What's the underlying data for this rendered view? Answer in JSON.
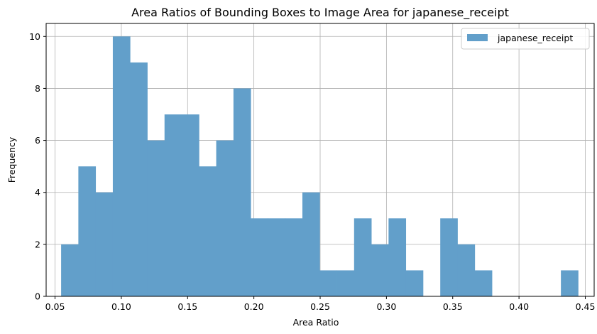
{
  "chart_data": {
    "type": "bar",
    "subtype": "histogram",
    "title": "Area Ratios of Bounding Boxes to Image Area for japanese_receipt",
    "xlabel": "Area Ratio",
    "ylabel": "Frequency",
    "xlim": [
      0.0433,
      0.4567
    ],
    "ylim": [
      0,
      10.5
    ],
    "xticks": [
      "0.05",
      "0.10",
      "0.15",
      "0.20",
      "0.25",
      "0.30",
      "0.35",
      "0.40",
      "0.45"
    ],
    "yticks": [
      "0",
      "2",
      "4",
      "6",
      "8",
      "10"
    ],
    "grid": true,
    "legend_position": "top-right",
    "series": [
      {
        "name": "japanese_receipt",
        "color": "#629fca",
        "bin_edges": [
          0.0546,
          0.0676,
          0.0806,
          0.0936,
          0.1066,
          0.1196,
          0.1326,
          0.1456,
          0.1586,
          0.1716,
          0.1846,
          0.1976,
          0.2106,
          0.2236,
          0.2366,
          0.2496,
          0.2626,
          0.2756,
          0.2886,
          0.3016,
          0.3146,
          0.3276,
          0.3406,
          0.3536,
          0.3666,
          0.3796,
          0.3926,
          0.4056,
          0.4186,
          0.4316,
          0.4446
        ],
        "counts": [
          2,
          5,
          4,
          10,
          9,
          6,
          7,
          7,
          5,
          6,
          8,
          3,
          3,
          3,
          4,
          1,
          1,
          3,
          2,
          3,
          1,
          0,
          3,
          2,
          1,
          0,
          0,
          0,
          0,
          1
        ]
      }
    ]
  }
}
